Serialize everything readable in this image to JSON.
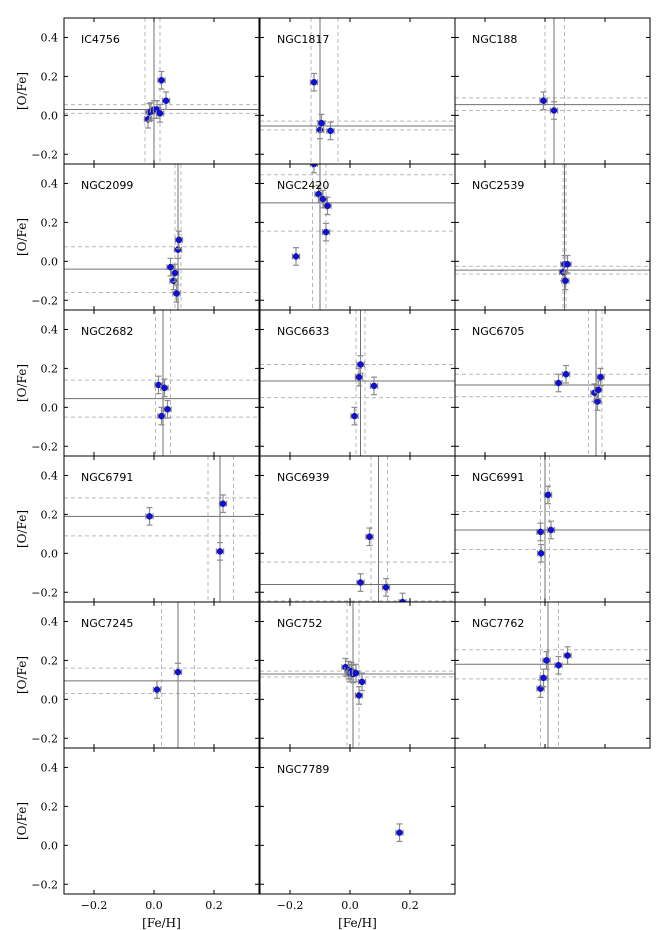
{
  "chart_data": {
    "type": "scatter",
    "xlabel": "[Fe/H]",
    "ylabel": "[O/Fe]",
    "xlim": [
      -0.3,
      0.35
    ],
    "ylim": [
      -0.25,
      0.5
    ],
    "xticks": [
      -0.2,
      0.0,
      0.2
    ],
    "xtick_labels": [
      "−0.2",
      "0.0",
      "0.2"
    ],
    "yticks": [
      -0.2,
      0.0,
      0.2,
      0.4
    ],
    "ytick_labels": [
      "−0.2",
      "0.0",
      "0.2",
      "0.4"
    ],
    "grid": false,
    "colors": {
      "marker": "#1010d8",
      "errorbar": "#8c8c8c",
      "reference": "#707070",
      "reference_band": "#b8b8b8"
    },
    "panels": [
      {
        "name": "IC4756",
        "mean_feh": 0.0,
        "feh_band": [
          -0.03,
          0.02
        ],
        "mean_ofe": 0.03,
        "ofe_band": [
          0.01,
          0.055
        ],
        "points": [
          [
            -0.02,
            -0.02
          ],
          [
            -0.015,
            0.015
          ],
          [
            -0.01,
            0.02
          ],
          [
            0.0,
            0.03
          ],
          [
            0.01,
            0.03
          ],
          [
            0.02,
            0.01
          ],
          [
            0.025,
            0.18
          ],
          [
            0.04,
            0.075
          ]
        ]
      },
      {
        "name": "NGC1817",
        "mean_feh": -0.1,
        "feh_band": [
          -0.13,
          -0.04
        ],
        "mean_ofe": -0.055,
        "ofe_band": [
          -0.075,
          -0.03
        ],
        "points": [
          [
            -0.12,
            0.17
          ],
          [
            -0.1,
            -0.075
          ],
          [
            -0.095,
            -0.04
          ],
          [
            -0.065,
            -0.08
          ]
        ]
      },
      {
        "name": "NGC188",
        "mean_feh": 0.03,
        "feh_band": [
          0.0,
          0.065
        ],
        "mean_ofe": 0.055,
        "ofe_band": [
          0.025,
          0.09
        ],
        "points": [
          [
            -0.005,
            0.075
          ],
          [
            0.03,
            0.025
          ]
        ]
      },
      {
        "name": "NGC2099",
        "mean_feh": 0.08,
        "feh_band": [
          0.07,
          0.09
        ],
        "mean_ofe": -0.04,
        "ofe_band": [
          -0.16,
          0.075
        ],
        "points": [
          [
            0.055,
            -0.03
          ],
          [
            0.065,
            -0.1
          ],
          [
            0.07,
            -0.06
          ],
          [
            0.075,
            -0.165
          ],
          [
            0.08,
            0.06
          ],
          [
            0.083,
            0.11
          ]
        ]
      },
      {
        "name": "NGC2420",
        "mean_feh": -0.1,
        "feh_band": [
          -0.125,
          -0.08
        ],
        "mean_ofe": 0.3,
        "ofe_band": [
          0.155,
          0.445
        ],
        "points": [
          [
            -0.18,
            0.025
          ],
          [
            -0.12,
            0.5
          ],
          [
            -0.105,
            0.345
          ],
          [
            -0.09,
            0.32
          ],
          [
            -0.08,
            0.15
          ],
          [
            -0.075,
            0.285
          ]
        ]
      },
      {
        "name": "NGC2539",
        "mean_feh": 0.065,
        "feh_band": [
          0.06,
          0.07
        ],
        "mean_ofe": -0.045,
        "ofe_band": [
          -0.065,
          -0.025
        ],
        "points": [
          [
            0.06,
            -0.055
          ],
          [
            0.065,
            -0.015
          ],
          [
            0.068,
            -0.1
          ],
          [
            0.075,
            -0.015
          ]
        ]
      },
      {
        "name": "NGC2682",
        "mean_feh": 0.03,
        "feh_band": [
          0.005,
          0.055
        ],
        "mean_ofe": 0.045,
        "ofe_band": [
          -0.05,
          0.14
        ],
        "points": [
          [
            0.015,
            0.115
          ],
          [
            0.025,
            -0.045
          ],
          [
            0.035,
            0.1
          ],
          [
            0.045,
            -0.01
          ]
        ]
      },
      {
        "name": "NGC6633",
        "mean_feh": 0.035,
        "feh_band": [
          0.02,
          0.05
        ],
        "mean_ofe": 0.135,
        "ofe_band": [
          0.05,
          0.22
        ],
        "points": [
          [
            0.015,
            -0.045
          ],
          [
            0.03,
            0.155
          ],
          [
            0.035,
            0.22
          ],
          [
            0.08,
            0.11
          ]
        ]
      },
      {
        "name": "NGC6705",
        "mean_feh": 0.17,
        "feh_band": [
          0.145,
          0.19
        ],
        "mean_ofe": 0.115,
        "ofe_band": [
          0.055,
          0.17
        ],
        "points": [
          [
            0.045,
            0.125
          ],
          [
            0.07,
            0.17
          ],
          [
            0.165,
            0.075
          ],
          [
            0.175,
            0.03
          ],
          [
            0.178,
            0.09
          ],
          [
            0.185,
            0.155
          ]
        ]
      },
      {
        "name": "NGC6791",
        "mean_feh": 0.22,
        "feh_band": [
          0.18,
          0.265
        ],
        "mean_ofe": 0.19,
        "ofe_band": [
          0.09,
          0.285
        ],
        "points": [
          [
            -0.015,
            0.19
          ],
          [
            0.22,
            0.01
          ],
          [
            0.23,
            0.255
          ]
        ]
      },
      {
        "name": "NGC6939",
        "mean_feh": 0.095,
        "feh_band": [
          0.07,
          0.125
        ],
        "mean_ofe": -0.16,
        "ofe_band": [
          -0.245,
          -0.045
        ],
        "points": [
          [
            0.035,
            -0.15
          ],
          [
            0.065,
            0.085
          ],
          [
            0.12,
            -0.175
          ],
          [
            0.175,
            -0.25
          ]
        ]
      },
      {
        "name": "NGC6991",
        "mean_feh": 0.0,
        "feh_band": [
          -0.015,
          0.015
        ],
        "mean_ofe": 0.12,
        "ofe_band": [
          0.02,
          0.215
        ],
        "points": [
          [
            -0.015,
            0.11
          ],
          [
            -0.013,
            0.0
          ],
          [
            0.01,
            0.3
          ],
          [
            0.02,
            0.12
          ]
        ]
      },
      {
        "name": "NGC7245",
        "mean_feh": 0.08,
        "feh_band": [
          0.025,
          0.135
        ],
        "mean_ofe": 0.095,
        "ofe_band": [
          0.03,
          0.16
        ],
        "points": [
          [
            0.01,
            0.05
          ],
          [
            0.08,
            0.14
          ]
        ]
      },
      {
        "name": "NGC752",
        "mean_feh": 0.01,
        "feh_band": [
          -0.01,
          0.03
        ],
        "mean_ofe": 0.13,
        "ofe_band": [
          0.115,
          0.145
        ],
        "points": [
          [
            -0.015,
            0.165
          ],
          [
            -0.005,
            0.15
          ],
          [
            0.0,
            0.135
          ],
          [
            0.005,
            0.145
          ],
          [
            0.01,
            0.13
          ],
          [
            0.02,
            0.135
          ],
          [
            0.03,
            0.02
          ],
          [
            0.04,
            0.09
          ]
        ]
      },
      {
        "name": "NGC7762",
        "mean_feh": 0.01,
        "feh_band": [
          -0.015,
          0.045
        ],
        "mean_ofe": 0.18,
        "ofe_band": [
          0.105,
          0.255
        ],
        "points": [
          [
            -0.015,
            0.055
          ],
          [
            -0.005,
            0.11
          ],
          [
            0.005,
            0.2
          ],
          [
            0.045,
            0.175
          ],
          [
            0.075,
            0.225
          ]
        ]
      },
      {
        "name": "",
        "mean_feh": null,
        "feh_band": null,
        "mean_ofe": null,
        "ofe_band": null,
        "points": []
      },
      {
        "name": "NGC7789",
        "mean_feh": null,
        "feh_band": null,
        "mean_ofe": null,
        "ofe_band": null,
        "points": [
          [
            0.165,
            0.065
          ]
        ]
      }
    ],
    "error": {
      "feh": 0.012,
      "ofe": 0.045
    }
  }
}
